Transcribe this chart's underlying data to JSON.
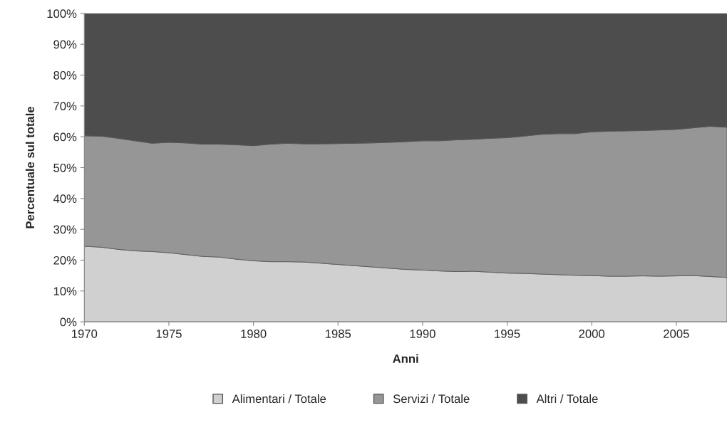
{
  "chart_data": {
    "type": "area",
    "stacked": true,
    "xlabel": "Anni",
    "ylabel": "Percentuale sul totale",
    "x": [
      1970,
      1971,
      1972,
      1973,
      1974,
      1975,
      1976,
      1977,
      1978,
      1979,
      1980,
      1981,
      1982,
      1983,
      1984,
      1985,
      1986,
      1987,
      1988,
      1989,
      1990,
      1991,
      1992,
      1993,
      1994,
      1995,
      1996,
      1997,
      1998,
      1999,
      2000,
      2001,
      2002,
      2003,
      2004,
      2005,
      2006,
      2007,
      2008
    ],
    "series": [
      {
        "name": "Alimentari / Totale",
        "color": "#d0d0d0",
        "values": [
          24.5,
          24.2,
          23.5,
          23,
          22.8,
          22.4,
          21.8,
          21.2,
          21,
          20.3,
          19.8,
          19.5,
          19.5,
          19.4,
          19,
          18.6,
          18.2,
          17.8,
          17.4,
          17,
          16.8,
          16.5,
          16.3,
          16.4,
          16.1,
          15.8,
          15.7,
          15.5,
          15.3,
          15.1,
          15.0,
          14.8,
          14.8,
          14.9,
          14.8,
          14.9,
          15.0,
          14.7,
          14.4
        ]
      },
      {
        "name": "Servizi / Totale",
        "color": "#969696",
        "values": [
          35.8,
          36.0,
          36.0,
          35.7,
          35.1,
          35.8,
          36.2,
          36.4,
          36.6,
          37.1,
          37.3,
          38.1,
          38.4,
          38.3,
          38.7,
          39.2,
          39.7,
          40.2,
          40.8,
          41.4,
          41.9,
          42.2,
          42.7,
          42.8,
          43.4,
          43.9,
          44.5,
          45.3,
          45.7,
          45.9,
          46.6,
          47.0,
          47.1,
          47.1,
          47.4,
          47.5,
          47.9,
          48.7,
          48.7
        ]
      },
      {
        "name": "Altri / Totale",
        "color": "#4d4d4d",
        "values": [
          39.7,
          39.8,
          40.5,
          41.3,
          42.1,
          41.8,
          42.0,
          42.4,
          42.4,
          42.6,
          42.9,
          42.4,
          42.1,
          42.3,
          42.3,
          42.2,
          42.1,
          42.0,
          41.8,
          41.6,
          41.3,
          41.3,
          41.0,
          40.8,
          40.5,
          40.3,
          39.8,
          39.2,
          39.0,
          39.0,
          38.4,
          38.2,
          38.1,
          38.0,
          37.8,
          37.6,
          37.1,
          36.6,
          36.9
        ]
      }
    ],
    "xlim": [
      1970,
      2008
    ],
    "xticks": [
      1970,
      1975,
      1980,
      1985,
      1990,
      1995,
      2000,
      2005
    ],
    "ylim": [
      0,
      100
    ],
    "yticks": [
      {
        "value": 0,
        "label": "0%"
      },
      {
        "value": 10,
        "label": "10%"
      },
      {
        "value": 20,
        "label": "20%"
      },
      {
        "value": 30,
        "label": "30%"
      },
      {
        "value": 40,
        "label": "40%"
      },
      {
        "value": 50,
        "label": "50%"
      },
      {
        "value": 60,
        "label": "60%"
      },
      {
        "value": 70,
        "label": "70%"
      },
      {
        "value": 80,
        "label": "80%"
      },
      {
        "value": 90,
        "label": "90%"
      },
      {
        "value": 100,
        "label": "100%"
      }
    ],
    "grid": false,
    "legend": "bottom"
  }
}
